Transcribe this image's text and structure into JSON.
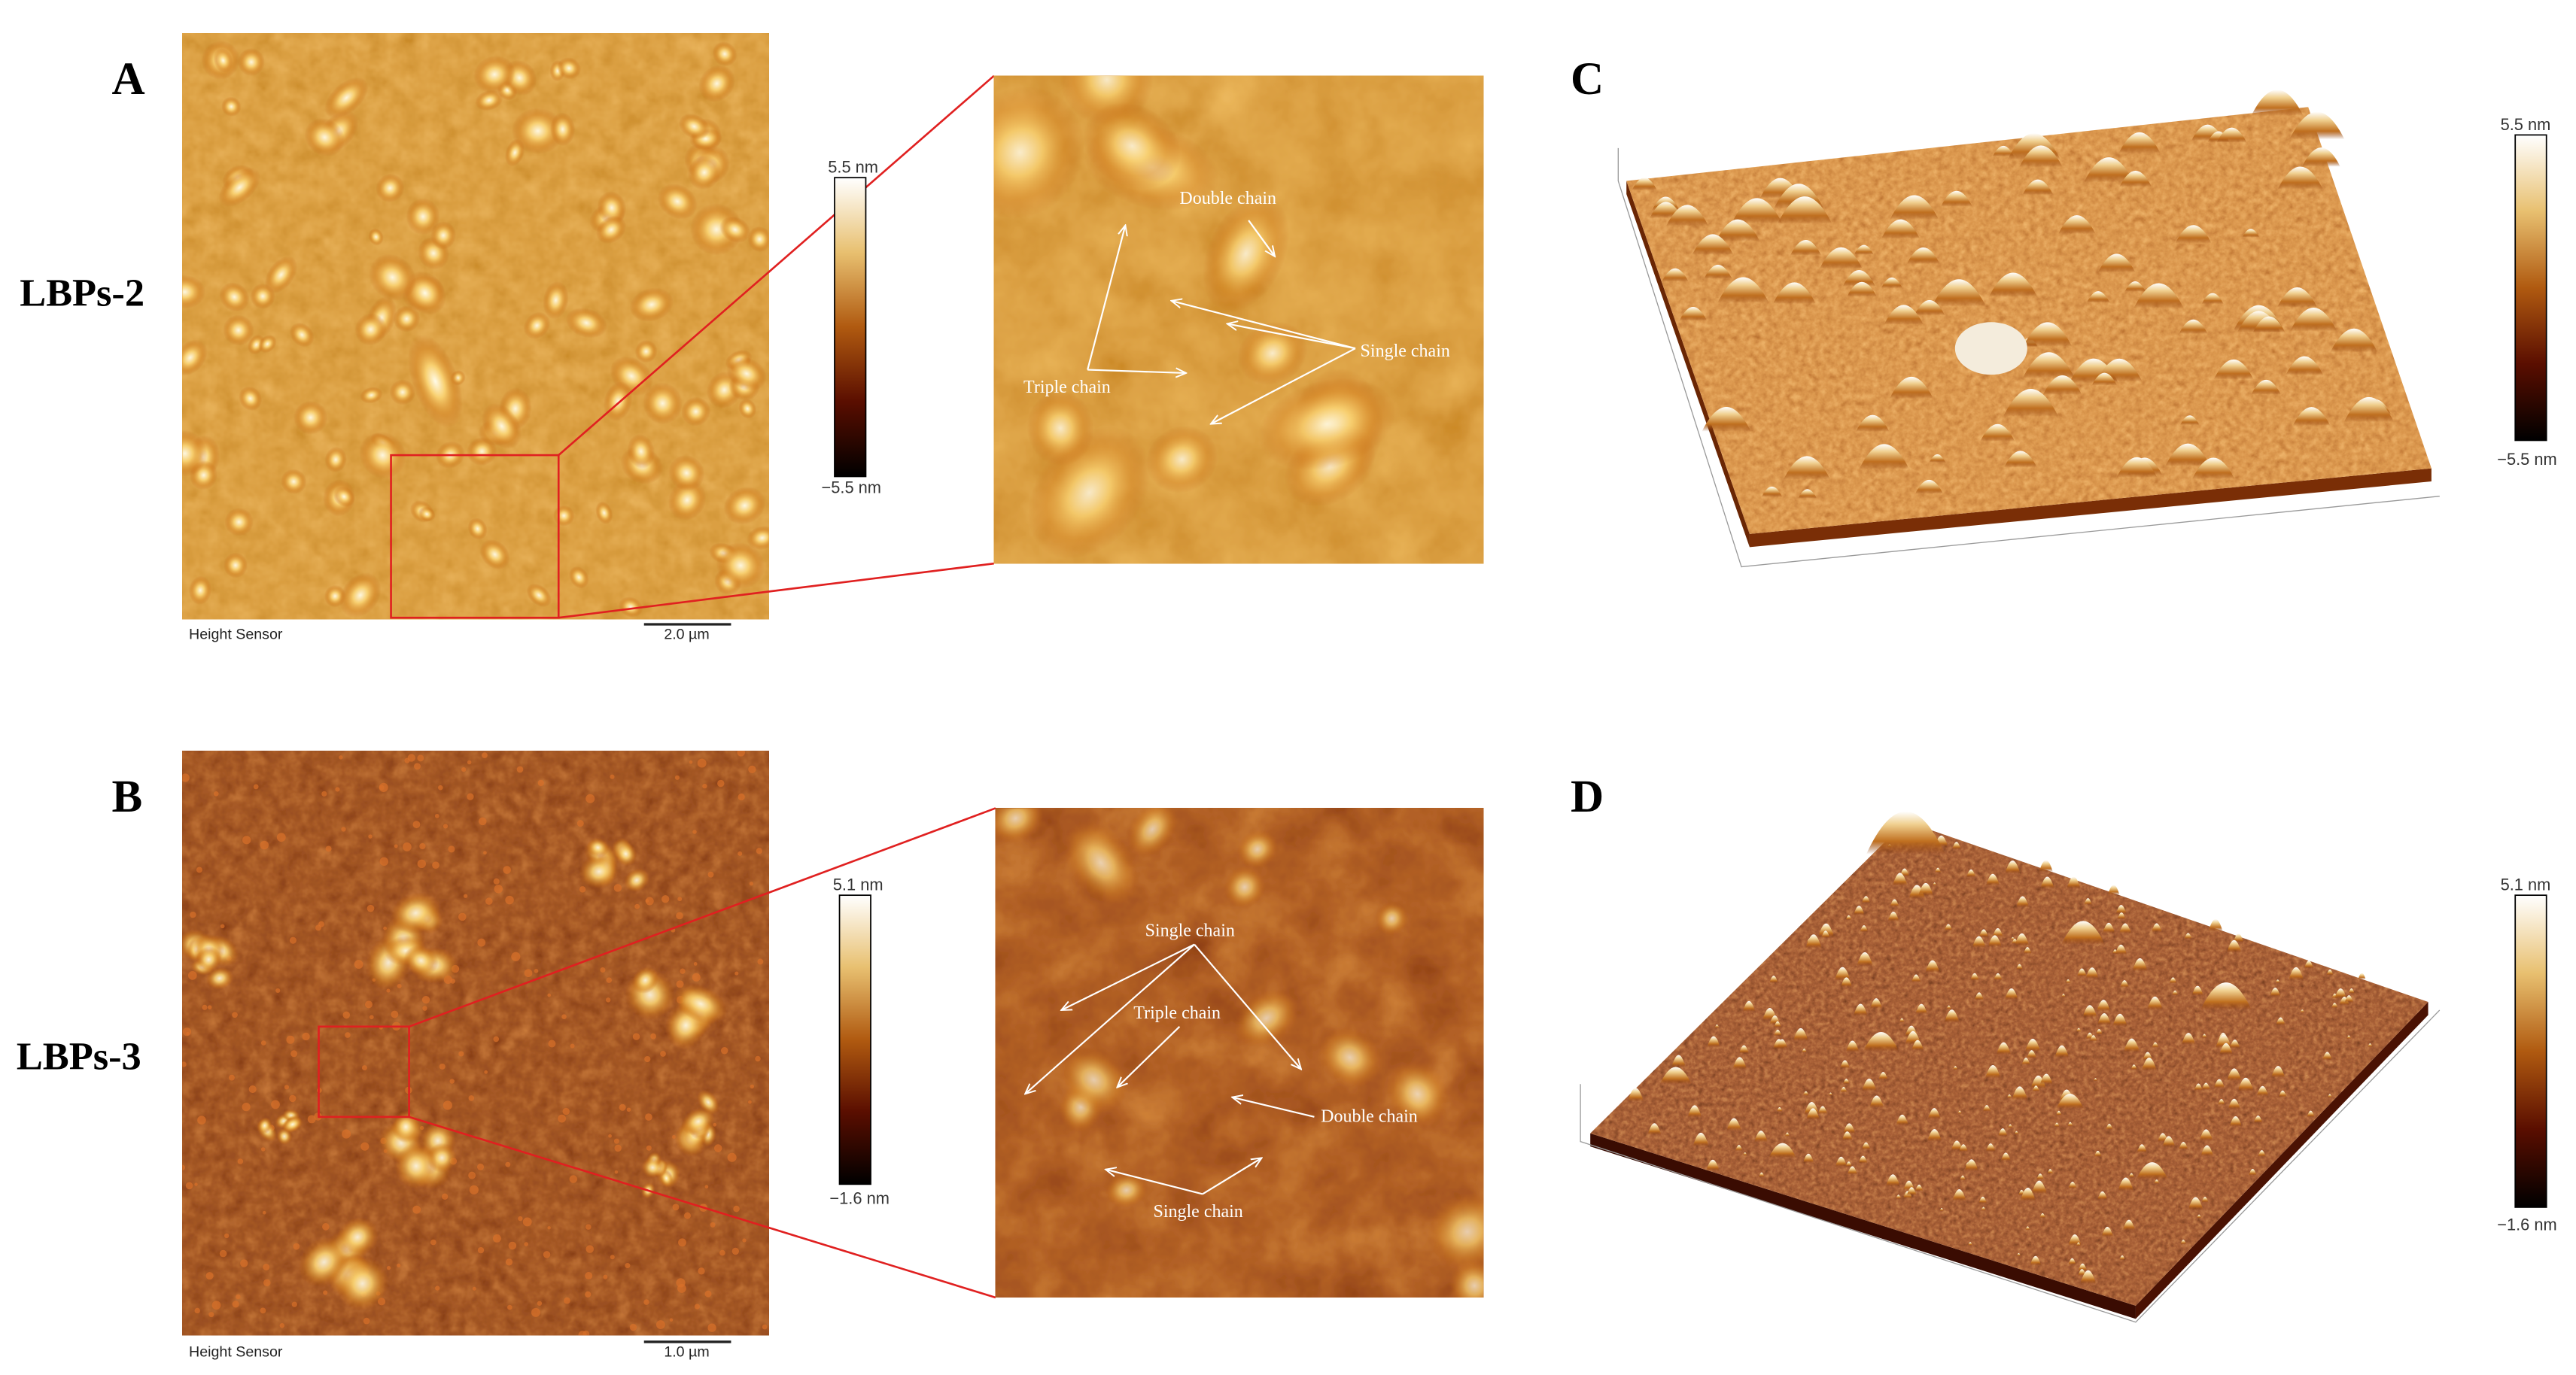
{
  "panels": [
    {
      "label": "A",
      "sample": "LBPs-2",
      "footer": "Height Sensor",
      "scale_bar": "2.0 µm",
      "colorbar": {
        "max": "5.5 nm",
        "min": "−5.5 nm"
      },
      "annotations": [
        "Double chain",
        "Single chain",
        "Triple chain"
      ]
    },
    {
      "label": "B",
      "sample": "LBPs-3",
      "footer": "Height Sensor",
      "scale_bar": "1.0 µm",
      "colorbar": {
        "max": "5.1 nm",
        "min": "−1.6 nm"
      },
      "annotations": [
        "Single chain",
        "Triple chain",
        "Double chain",
        "Single chain"
      ]
    },
    {
      "label": "C",
      "colorbar": {
        "max": "5.5 nm",
        "min": "−5.5 nm"
      }
    },
    {
      "label": "D",
      "colorbar": {
        "max": "5.1 nm",
        "min": "−1.6 nm"
      }
    }
  ]
}
